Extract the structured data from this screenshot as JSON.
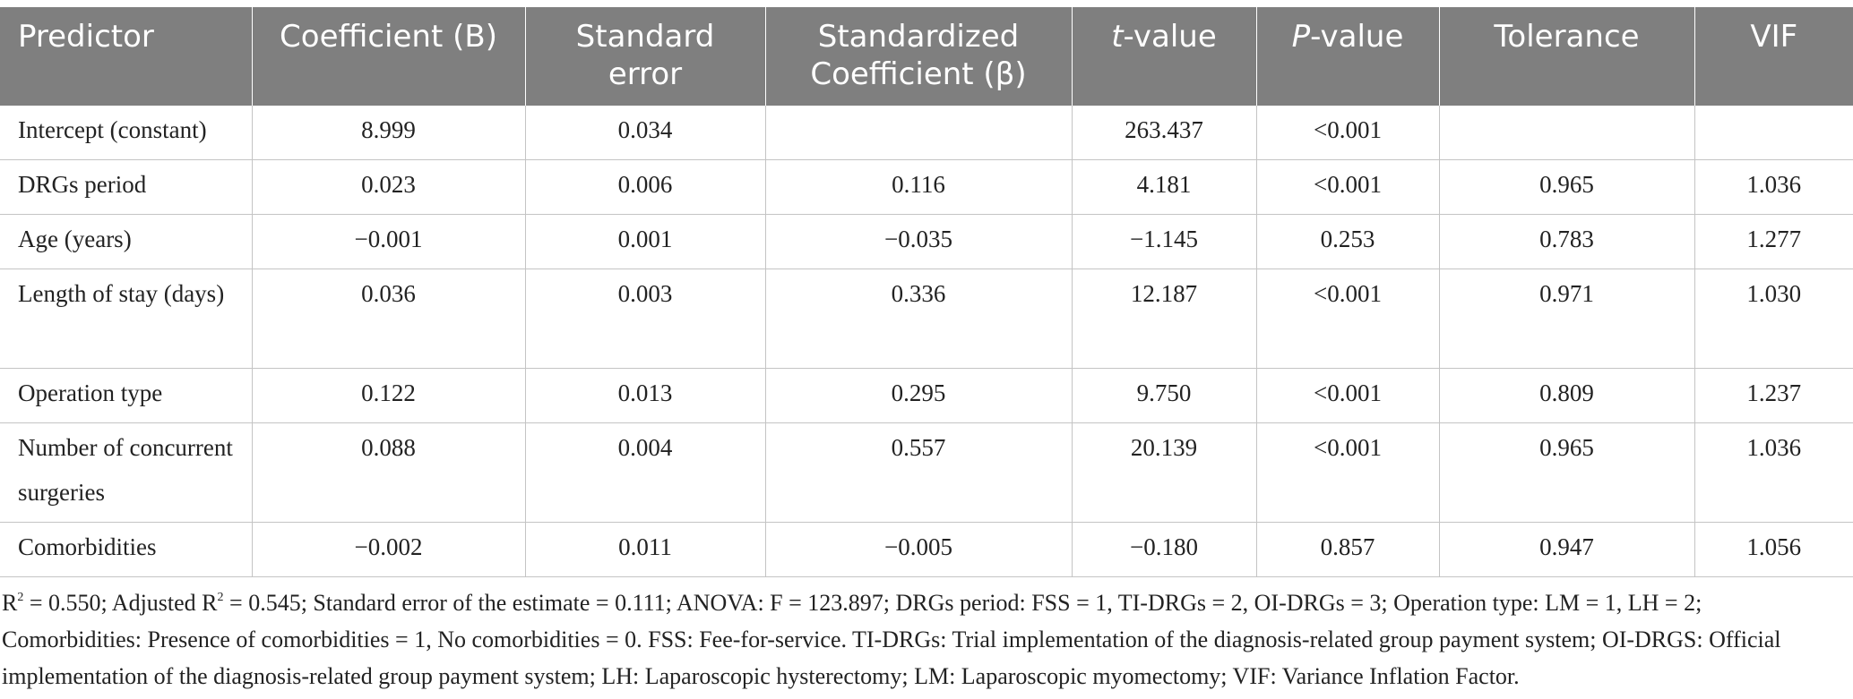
{
  "table": {
    "headers": {
      "predictor": "Predictor",
      "coefficient": "Coefficient (B)",
      "std_error": "Standard error",
      "std_coefficient": "Standardized Coefficient (β)",
      "t_value_italic": "t",
      "t_value_rest": "-value",
      "p_value_italic": "P",
      "p_value_rest": "-value",
      "tolerance": "Tolerance",
      "vif": "VIF"
    },
    "rows": [
      {
        "predictor": "Intercept (constant)",
        "b": "8.999",
        "se": "0.034",
        "beta": "",
        "t": "263.437",
        "p": "<0.001",
        "tol": "",
        "vif": ""
      },
      {
        "predictor": "DRGs period",
        "b": "0.023",
        "se": "0.006",
        "beta": "0.116",
        "t": "4.181",
        "p": "<0.001",
        "tol": "0.965",
        "vif": "1.036"
      },
      {
        "predictor": "Age (years)",
        "b": "−0.001",
        "se": "0.001",
        "beta": "−0.035",
        "t": "−1.145",
        "p": "0.253",
        "tol": "0.783",
        "vif": "1.277"
      },
      {
        "predictor": "Length of stay (days)",
        "b": "0.036",
        "se": "0.003",
        "beta": "0.336",
        "t": "12.187",
        "p": "<0.001",
        "tol": "0.971",
        "vif": "1.030"
      },
      {
        "predictor": "Operation type",
        "b": "0.122",
        "se": "0.013",
        "beta": "0.295",
        "t": "9.750",
        "p": "<0.001",
        "tol": "0.809",
        "vif": "1.237"
      },
      {
        "predictor": "Number of concurrent surgeries",
        "b": "0.088",
        "se": "0.004",
        "beta": "0.557",
        "t": "20.139",
        "p": "<0.001",
        "tol": "0.965",
        "vif": "1.036"
      },
      {
        "predictor": "Comorbidities",
        "b": "−0.002",
        "se": "0.011",
        "beta": "−0.005",
        "t": "−0.180",
        "p": "0.857",
        "tol": "0.947",
        "vif": "1.056"
      }
    ]
  },
  "footnote": {
    "r2_prefix": "R",
    "r2_sup": "2",
    "r2_text": " = 0.550; Adjusted R",
    "adj_sup": "2",
    "rest": " = 0.545; Standard error of the estimate = 0.111; ANOVA: F = 123.897; DRGs period: FSS = 1, TI-DRGs = 2, OI-DRGs = 3; Operation type: LM = 1, LH = 2; Comorbidities: Presence of comorbidities = 1, No comorbidities = 0. FSS: Fee-for-service. TI-DRGs: Trial implementation of the diagnosis-related group payment system; OI-DRGS: Official implementation of the diagnosis-related group payment system; LH: Laparoscopic hysterectomy; LM: Laparoscopic myomectomy; VIF: Variance Inflation Factor."
  }
}
